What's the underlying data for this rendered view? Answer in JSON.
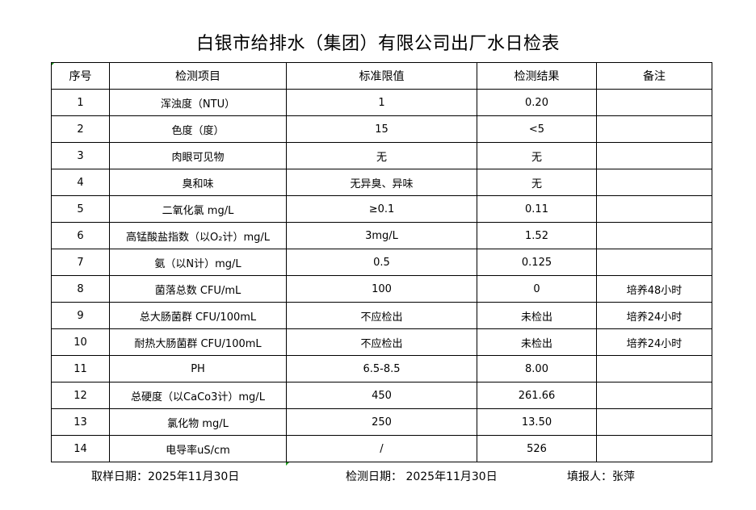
{
  "title": "白银市给排水（集团）有限公司出厂水日检表",
  "headers": [
    "序号",
    "检测项目",
    "标准限值",
    "检测结果",
    "备注"
  ],
  "rows": [
    [
      "1",
      "浑浊度（NTU）",
      "1",
      "0.20",
      ""
    ],
    [
      "2",
      "色度（度）",
      "15",
      "<5",
      ""
    ],
    [
      "3",
      "肉眼可见物",
      "无",
      "无",
      ""
    ],
    [
      "4",
      "臭和味",
      "无异臭、异味",
      "无",
      ""
    ],
    [
      "5",
      "二氧化氯 mg/L",
      "≥0.1",
      "0.11",
      ""
    ],
    [
      "6",
      "高锰酸盐指数（以O₂计）mg/L",
      "3mg/L",
      "1.52",
      ""
    ],
    [
      "7",
      "氨（以N计）mg/L",
      "0.5",
      "0.125",
      ""
    ],
    [
      "8",
      "菌落总数 CFU/mL",
      "100",
      "0",
      "培养48小时"
    ],
    [
      "9",
      "总大肠菌群 CFU/100mL",
      "不应检出",
      "未检出",
      "培养24小时"
    ],
    [
      "10",
      "耐热大肠菌群 CFU/100mL",
      "不应检出",
      "未检出",
      "培养24小时"
    ],
    [
      "11",
      "PH",
      "6.5-8.5",
      "8.00",
      ""
    ],
    [
      "12",
      "总硬度（以CaCo3计）mg/L",
      "450",
      "261.66",
      ""
    ],
    [
      "13",
      "氯化物 mg/L",
      "250",
      "13.50",
      ""
    ],
    [
      "14",
      "电导率uS/cm",
      "/",
      "526",
      ""
    ]
  ],
  "footer": {
    "sample_date": "取样日期：2025年11月30日",
    "test_date": "检测日期： 2025年11月30日",
    "reporter": "填报人：张萍"
  }
}
